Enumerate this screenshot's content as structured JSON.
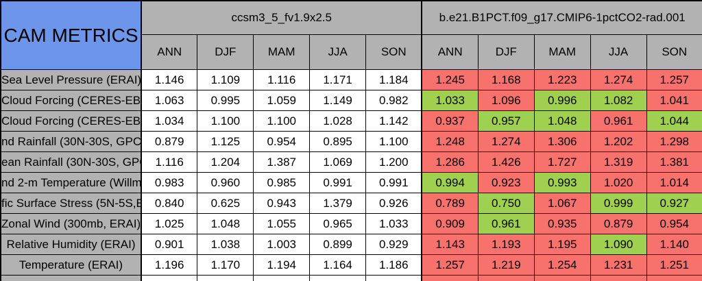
{
  "chart_data": {
    "type": "table",
    "title": "CAM METRICS",
    "column_groups": [
      "ccsm3_5_fv1.9x2.5",
      "b.e21.B1PCT.f09_g17.CMIP6-1pctCO2-rad.001"
    ],
    "season_columns": [
      "ANN",
      "DJF",
      "MAM",
      "JJA",
      "SON"
    ],
    "rows": [
      {
        "label": "Sea Level Pressure (ERAI)",
        "model1_values": [
          "1.146",
          "1.109",
          "1.116",
          "1.171",
          "1.184"
        ],
        "model2_values": [
          "1.245",
          "1.168",
          "1.223",
          "1.274",
          "1.257"
        ],
        "model2_colors": [
          "red",
          "red",
          "red",
          "red",
          "red"
        ]
      },
      {
        "label": "Cloud Forcing (CERES-EB",
        "model1_values": [
          "1.063",
          "0.995",
          "1.059",
          "1.149",
          "0.982"
        ],
        "model2_values": [
          "1.033",
          "1.096",
          "0.996",
          "1.082",
          "1.041"
        ],
        "model2_colors": [
          "green",
          "red",
          "green",
          "green",
          "red"
        ]
      },
      {
        "label": "Cloud Forcing (CERES-EB",
        "model1_values": [
          "1.034",
          "1.100",
          "1.100",
          "1.028",
          "1.142"
        ],
        "model2_values": [
          "0.937",
          "0.957",
          "1.048",
          "0.961",
          "1.044"
        ],
        "model2_colors": [
          "red",
          "green",
          "green",
          "red",
          "green"
        ]
      },
      {
        "label": "nd Rainfall (30N-30S, GPC",
        "model1_values": [
          "0.879",
          "1.125",
          "0.954",
          "0.895",
          "1.100"
        ],
        "model2_values": [
          "1.248",
          "1.274",
          "1.306",
          "1.202",
          "1.298"
        ],
        "model2_colors": [
          "red",
          "red",
          "red",
          "red",
          "red"
        ]
      },
      {
        "label": "ean Rainfall (30N-30S, GPC",
        "model1_values": [
          "1.116",
          "1.204",
          "1.387",
          "1.069",
          "1.200"
        ],
        "model2_values": [
          "1.286",
          "1.426",
          "1.727",
          "1.319",
          "1.381"
        ],
        "model2_colors": [
          "red",
          "red",
          "red",
          "red",
          "red"
        ]
      },
      {
        "label": "nd 2-m Temperature (Willmo",
        "model1_values": [
          "0.983",
          "0.960",
          "0.985",
          "0.991",
          "0.991"
        ],
        "model2_values": [
          "0.994",
          "0.923",
          "0.993",
          "1.020",
          "1.014"
        ],
        "model2_colors": [
          "green",
          "red",
          "green",
          "red",
          "red"
        ]
      },
      {
        "label": "fic Surface Stress (5N-5S,E",
        "model1_values": [
          "0.840",
          "0.625",
          "0.943",
          "1.379",
          "0.926"
        ],
        "model2_values": [
          "0.789",
          "0.750",
          "1.067",
          "0.999",
          "0.927"
        ],
        "model2_colors": [
          "red",
          "green",
          "red",
          "green",
          "green"
        ]
      },
      {
        "label": "Zonal Wind (300mb, ERAI)",
        "model1_values": [
          "1.025",
          "1.048",
          "1.055",
          "0.965",
          "1.033"
        ],
        "model2_values": [
          "0.909",
          "0.961",
          "0.935",
          "0.879",
          "0.954"
        ],
        "model2_colors": [
          "red",
          "green",
          "red",
          "red",
          "red"
        ]
      },
      {
        "label": "Relative Humidity (ERAI)",
        "model1_values": [
          "0.901",
          "1.038",
          "1.003",
          "0.899",
          "0.929"
        ],
        "model2_values": [
          "1.143",
          "1.193",
          "1.195",
          "1.090",
          "1.140"
        ],
        "model2_colors": [
          "red",
          "red",
          "red",
          "green",
          "red"
        ]
      },
      {
        "label": "Temperature (ERAI)",
        "model1_values": [
          "1.196",
          "1.170",
          "1.194",
          "1.164",
          "1.186"
        ],
        "model2_values": [
          "1.257",
          "1.219",
          "1.254",
          "1.231",
          "1.251"
        ],
        "model2_colors": [
          "red",
          "red",
          "red",
          "red",
          "red"
        ]
      }
    ],
    "partial_bottom_row": {
      "label": "",
      "model1_values": [
        "",
        "",
        "",
        "",
        ""
      ],
      "model2_values": [
        "",
        "",
        "",
        "",
        ""
      ],
      "model2_colors": [
        "red",
        "red",
        "red",
        "red",
        "red"
      ]
    },
    "cell_colors": {
      "red": "#f7716d",
      "green": "#9fd04f",
      "header_blue": "#6d96ea",
      "header_gray": "#b2b2b2"
    }
  }
}
